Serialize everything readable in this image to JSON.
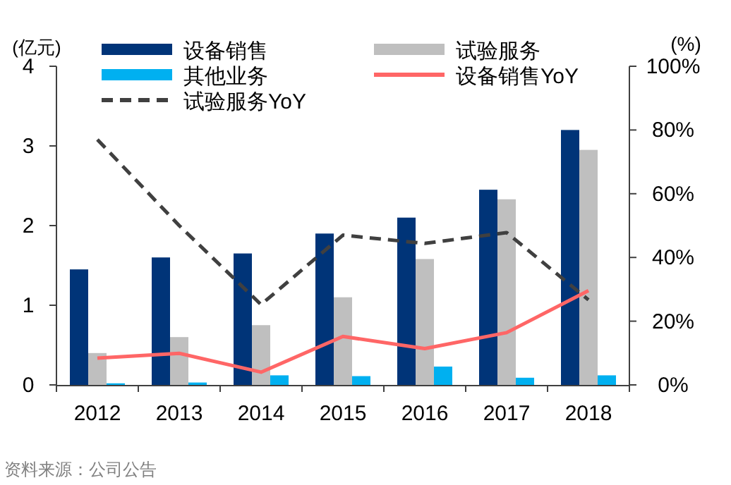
{
  "chart_data": {
    "type": "bar",
    "ylabel": "(亿元)",
    "y2label": "(%)",
    "categories": [
      "2012",
      "2013",
      "2014",
      "2015",
      "2016",
      "2017",
      "2018"
    ],
    "series": [
      {
        "name": "设备销售",
        "type": "bar",
        "color": "#003478",
        "values": [
          1.45,
          1.6,
          1.65,
          1.9,
          2.1,
          2.45,
          3.2
        ]
      },
      {
        "name": "试验服务",
        "type": "bar",
        "color": "#bfbfbf",
        "values": [
          0.4,
          0.6,
          0.75,
          1.1,
          1.58,
          2.33,
          2.95
        ]
      },
      {
        "name": "其他业务",
        "type": "bar",
        "color": "#00b0f0",
        "values": [
          0.02,
          0.03,
          0.12,
          0.11,
          0.23,
          0.09,
          0.12
        ]
      },
      {
        "name": "设备销售YoY",
        "type": "line",
        "axis": "y2",
        "color": "#ff6666",
        "line_style": "solid",
        "values": [
          8.4,
          9.9,
          4,
          15.2,
          11.4,
          16.4,
          29.6
        ]
      },
      {
        "name": "试验服务YoY",
        "type": "line",
        "axis": "y2",
        "color": "#404040",
        "line_style": "dashed",
        "values": [
          77,
          50,
          25.2,
          47,
          44.4,
          47.8,
          26.7
        ]
      }
    ],
    "ylim": [
      0,
      4
    ],
    "yticks": [
      0,
      1,
      2,
      3,
      4
    ],
    "y2lim": [
      0,
      100
    ],
    "y2ticks": [
      {
        "value": 0,
        "label": "0%"
      },
      {
        "value": 20,
        "label": "20%"
      },
      {
        "value": 40,
        "label": "40%"
      },
      {
        "value": 60,
        "label": "60%"
      },
      {
        "value": 80,
        "label": "80%"
      },
      {
        "value": 100,
        "label": "100%"
      }
    ],
    "legend": "top",
    "grid": false,
    "annotations": [
      "资料来源：公司公告"
    ]
  }
}
